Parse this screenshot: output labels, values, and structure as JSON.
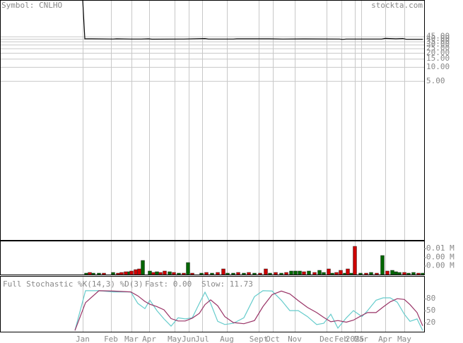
{
  "chart_data": [
    {
      "type": "line",
      "title": "Symbol: CNLHO",
      "source": "stockta.com",
      "log_scale": true,
      "grid": true,
      "xlim": [
        0,
        120
      ],
      "ylim": [
        0.002,
        270
      ],
      "yticks": [
        {
          "value": 45,
          "label": "45.00"
        },
        {
          "value": 40,
          "label": "40.00"
        },
        {
          "value": 35,
          "label": "35.00"
        },
        {
          "value": 30,
          "label": "30.00"
        },
        {
          "value": 25,
          "label": "25.00"
        },
        {
          "value": 20,
          "label": "20.00"
        },
        {
          "value": 15,
          "label": "15.00"
        },
        {
          "value": 10,
          "label": "10.00"
        },
        {
          "value": 5,
          "label": "5.00"
        }
      ],
      "series": [
        {
          "color": "#000000",
          "x": [
            23.4,
            24,
            26,
            32,
            33,
            37,
            40,
            42,
            43,
            52,
            58,
            59,
            66,
            67,
            76,
            80,
            86,
            96,
            97,
            98,
            108,
            109,
            112,
            114,
            115,
            119.6
          ],
          "values": [
            270,
            40,
            40,
            39.5,
            40,
            39.5,
            39.5,
            40,
            39.2,
            39.5,
            40.5,
            39.5,
            39.5,
            40,
            40,
            39.5,
            39.8,
            39.5,
            38.8,
            39.5,
            39.5,
            40.8,
            40,
            40.5,
            39,
            39
          ]
        }
      ]
    },
    {
      "type": "bar",
      "grid": false,
      "xlim": [
        0,
        120
      ],
      "ylim": [
        0,
        0.0096
      ],
      "yticks": [
        {
          "value": 0.0074,
          "label": "0.01 M"
        },
        {
          "value": 0.0049,
          "label": "0.00 M"
        },
        {
          "value": 0.0025,
          "label": "0.00 M"
        }
      ],
      "series": [
        {
          "color": "#006600",
          "x": [
            24.4,
            26.4,
            28,
            32,
            36.6,
            40.4,
            42.4,
            44.4,
            48,
            50.6,
            53.2,
            57,
            60,
            64.4,
            66,
            69,
            72,
            76.4,
            79.6,
            82.4,
            83.6,
            84.8,
            87.4,
            90.4,
            91.6,
            94,
            97.6,
            99.4,
            102,
            105,
            108.2,
            111,
            112,
            113,
            115.6,
            117,
            119.6
          ],
          "values": [
            0.0004,
            0.0004,
            0.0004,
            0.0006,
            0.0008,
            0.004,
            0.001,
            0.0008,
            0.0008,
            0.0004,
            0.0034,
            0.0004,
            0.0004,
            0.0004,
            0.0004,
            0.0004,
            0.0004,
            0.0004,
            0.0004,
            0.001,
            0.001,
            0.001,
            0.001,
            0.0012,
            0.0006,
            0.0004,
            0.0004,
            0.0004,
            0.0004,
            0.0006,
            0.0054,
            0.0012,
            0.0008,
            0.0006,
            0.0004,
            0.0006,
            0.0004
          ]
        },
        {
          "color": "#cc0000",
          "x": [
            25.4,
            29.4,
            33.4,
            34.4,
            35.6,
            37.2,
            38.4,
            39.4,
            43.4,
            45.4,
            46.6,
            49.2,
            52,
            54.4,
            58.4,
            61.6,
            63.2,
            67.4,
            70.4,
            73.6,
            75.2,
            78,
            81,
            86,
            89,
            93,
            95.2,
            96.4,
            98.4,
            100.4,
            103.6,
            106.6,
            109.6,
            114.4,
            118.4
          ],
          "values": [
            0.0006,
            0.0004,
            0.0004,
            0.0006,
            0.0008,
            0.001,
            0.0014,
            0.0016,
            0.0006,
            0.0006,
            0.001,
            0.0006,
            0.0004,
            0.0004,
            0.0006,
            0.0006,
            0.0016,
            0.0006,
            0.0006,
            0.0004,
            0.0016,
            0.0006,
            0.0006,
            0.0008,
            0.0006,
            0.0016,
            0.0006,
            0.0012,
            0.0016,
            0.008,
            0.0004,
            0.0004,
            0.001,
            0.0006,
            0.0004
          ]
        }
      ]
    },
    {
      "type": "line",
      "title": "Full Stochastic %K(14,3) %D(3)",
      "grid": false,
      "xlim": [
        0,
        120
      ],
      "ylim": [
        -3,
        137
      ],
      "yticks": [
        80,
        50,
        20
      ],
      "xticks": [
        {
          "value": 23.4,
          "label": "Jan"
        },
        {
          "value": 31.4,
          "label": "Feb"
        },
        {
          "value": 37.2,
          "label": "Mar"
        },
        {
          "value": 42.2,
          "label": "Apr"
        },
        {
          "value": 49.4,
          "label": "May"
        },
        {
          "value": 53.4,
          "label": "Jun"
        },
        {
          "value": 57.2,
          "label": "Jul"
        },
        {
          "value": 64.2,
          "label": "Aug"
        },
        {
          "value": 73.2,
          "label": "Sept"
        },
        {
          "value": 77.2,
          "label": "Oct"
        },
        {
          "value": 83.4,
          "label": "Nov"
        },
        {
          "value": 92.4,
          "label": "Dec"
        },
        {
          "value": 96.6,
          "label": "Feb"
        },
        {
          "value": 100.4,
          "label": "2025"
        },
        {
          "value": 102.2,
          "label": "Mar"
        },
        {
          "value": 109,
          "label": "Apr"
        },
        {
          "value": 114.4,
          "label": "May"
        }
      ],
      "series": [
        {
          "name": "Fast: 0.00",
          "color": "#66cccc",
          "x": [
            21.2,
            24.2,
            28,
            32,
            37,
            39,
            41,
            42.4,
            44.4,
            46.4,
            48.4,
            50.4,
            52.4,
            54.4,
            56.4,
            58,
            59.6,
            61.6,
            63.6,
            66,
            69,
            72,
            74.4,
            77,
            79.6,
            82,
            84.4,
            87,
            89.6,
            91.6,
            93.6,
            95.6,
            98,
            100,
            102.4,
            104,
            106.4,
            108.4,
            110.4,
            112.4,
            114.4,
            116,
            118,
            119.6
          ],
          "values": [
            0,
            100,
            100,
            97,
            97,
            68,
            55,
            76,
            50,
            29,
            11,
            32,
            29,
            32,
            68,
            96,
            68,
            23,
            15,
            18,
            32,
            85,
            100,
            99,
            76,
            50,
            50,
            35,
            15,
            18,
            41,
            6,
            32,
            50,
            35,
            50,
            76,
            82,
            82,
            71,
            41,
            23,
            29,
            0
          ]
        },
        {
          "name": "Slow: 11.73",
          "color": "#993366",
          "x": [
            21.2,
            24.2,
            28,
            32,
            37,
            39,
            41,
            42.4,
            44.4,
            46.4,
            48.4,
            50.4,
            52.4,
            54.4,
            56.4,
            58,
            59.6,
            61.6,
            63.6,
            66,
            69,
            72,
            74.4,
            77,
            79.6,
            82,
            84.4,
            87,
            89.6,
            91.6,
            93.6,
            95.6,
            98,
            100,
            102.4,
            104,
            106.4,
            108.4,
            110.4,
            112.4,
            114.4,
            116,
            118,
            119.6
          ],
          "values": [
            0,
            70,
            100,
            99,
            97,
            87,
            73,
            66,
            60,
            52,
            30,
            24,
            24,
            31,
            43,
            65,
            77,
            62,
            35,
            20,
            17,
            25,
            60,
            90,
            99,
            92,
            75,
            58,
            45,
            33,
            22,
            25,
            21,
            26,
            38,
            45,
            45,
            59,
            72,
            80,
            78,
            65,
            45,
            11.73
          ]
        }
      ]
    }
  ]
}
